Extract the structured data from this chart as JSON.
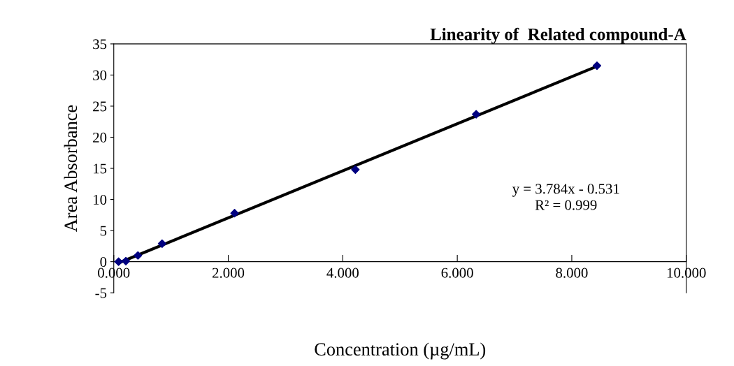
{
  "chart_data": {
    "type": "scatter",
    "title": "Linearity of  Related compound-A",
    "xlabel": "Concentration (µg/mL)",
    "ylabel": "Area Absorbance",
    "series": [
      {
        "color": "#000080",
        "marker": "diamond",
        "x": [
          0.084,
          0.211,
          0.422,
          0.844,
          2.11,
          4.22,
          6.33,
          8.44
        ],
        "values": [
          0.0,
          0.1,
          1.0,
          2.9,
          7.8,
          14.8,
          23.7,
          31.5
        ]
      },
      {
        "type": "line",
        "color": "#000000",
        "x": [
          0.084,
          8.44
        ],
        "values": [
          -0.2,
          31.4
        ]
      }
    ],
    "annotations": [
      "y = 3.784x - 0.531\nR² = 0.999"
    ],
    "xlim": [
      0,
      10
    ],
    "xticks": [
      {
        "value": 0,
        "label": "0.000"
      },
      {
        "value": 2,
        "label": "2.000"
      },
      {
        "value": 4,
        "label": "4.000"
      },
      {
        "value": 6,
        "label": "6.000"
      },
      {
        "value": 8,
        "label": "8.000"
      },
      {
        "value": 10,
        "label": "10.000"
      }
    ],
    "ylim": [
      -5,
      35
    ],
    "yticks": [
      -5,
      0,
      5,
      10,
      15,
      20,
      25,
      30,
      35
    ],
    "grid": false,
    "legend": false
  }
}
